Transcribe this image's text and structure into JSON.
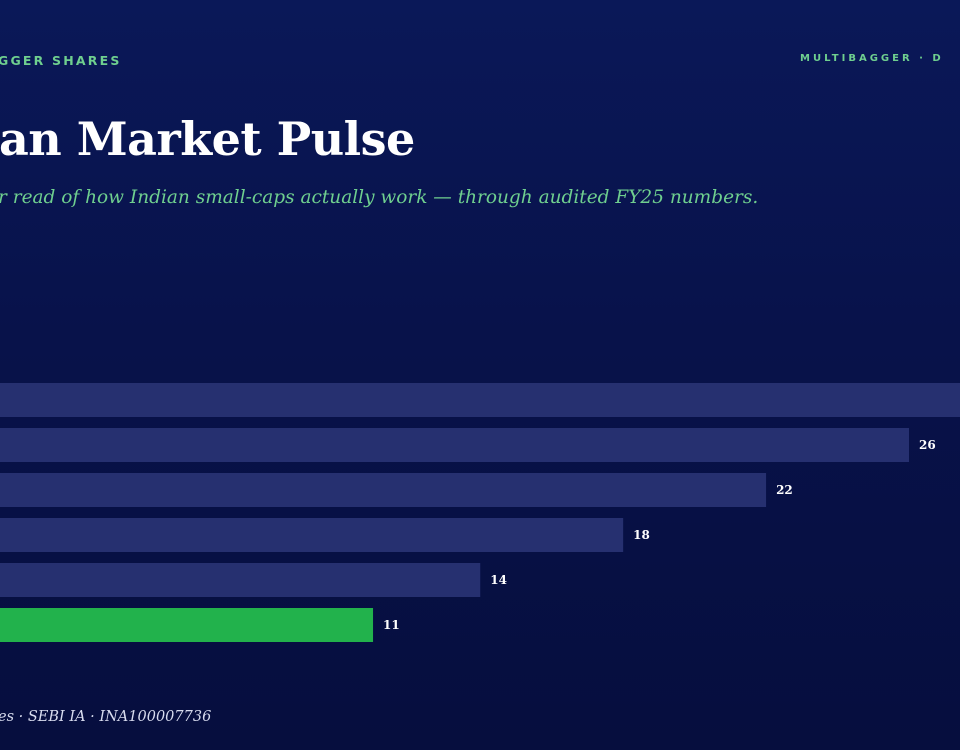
{
  "header": {
    "brand_left": "GGER SHARES",
    "brand_right": "MULTIBAGGER · D"
  },
  "title": "an Market Pulse",
  "subtitle": "r read of how Indian small-caps actually work — through audited FY25 numbers.",
  "footer": "es · SEBI IA · INA100007736",
  "colors": {
    "bar": "#263070",
    "highlight": "#22b24c",
    "label": "#ffffff"
  },
  "chart_data": {
    "type": "bar",
    "orientation": "horizontal",
    "values": [
      30,
      26,
      22,
      18,
      14,
      11
    ],
    "labels": [
      "",
      "26",
      "22",
      "18",
      "14",
      "11"
    ],
    "highlight_index": 5
  }
}
